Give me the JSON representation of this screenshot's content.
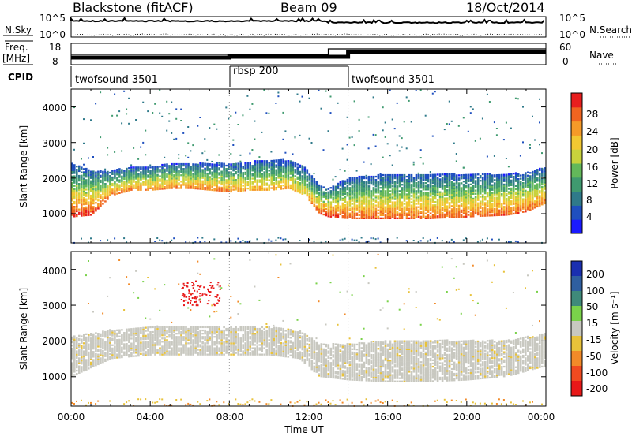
{
  "header": {
    "station": "Blackstone (fitACF)",
    "beam": "Beam 09",
    "date": "18/Oct/2014"
  },
  "noise_panel": {
    "left_label": "N.Sky",
    "right_label": "N.Search",
    "left_ticks": [
      "10^5",
      "10^0"
    ],
    "right_ticks": [
      "10^5",
      "10^0"
    ]
  },
  "freq_panel": {
    "left_label_line1": "Freq.",
    "left_label_line2": "[MHz]",
    "left_ticks": [
      "18",
      "8"
    ],
    "right_label": "Nave",
    "right_ticks": [
      "60",
      "0"
    ]
  },
  "cpid_panel": {
    "label": "CPID",
    "segments": [
      {
        "name": "twofsound 3501",
        "start_hour": 0,
        "end_hour": 8
      },
      {
        "name": "rbsp 200",
        "start_hour": 8,
        "end_hour": 14
      },
      {
        "name": "twofsound 3501",
        "start_hour": 14,
        "end_hour": 24
      }
    ]
  },
  "axes": {
    "x_ticks": [
      "00:00",
      "04:00",
      "08:00",
      "12:00",
      "16:00",
      "20:00",
      "00:00"
    ],
    "x_label": "Time UT",
    "y_ticks": [
      "1000",
      "2000",
      "3000",
      "4000"
    ],
    "y_label": "Slant Range [km]"
  },
  "power_colorbar": {
    "label": "Power [dB]",
    "ticks": [
      "4",
      "8",
      "12",
      "16",
      "20",
      "24",
      "28"
    ],
    "colors": [
      "#1a1aff",
      "#1f4fbf",
      "#2f7a8a",
      "#3f9a6f",
      "#63b85a",
      "#c8d23c",
      "#f2c832",
      "#f59a28",
      "#f06420",
      "#e81e1e"
    ]
  },
  "velocity_colorbar": {
    "label": "Velocity [m s⁻¹]",
    "ticks": [
      "200",
      "100",
      "50",
      "15",
      "-15",
      "-50",
      "-100",
      "-200"
    ],
    "colors": [
      "#1a2fb0",
      "#2f5fa0",
      "#3f8a7a",
      "#7ad24a",
      "#c8c8c0",
      "#e8c23a",
      "#f28a28",
      "#f04a20",
      "#e81818"
    ]
  },
  "chart_data": [
    {
      "type": "heatmap",
      "panel": "power",
      "x_range_hours": [
        0,
        24
      ],
      "y_range_km": [
        180,
        4500
      ],
      "value_unit": "dB",
      "value_range": [
        0,
        30
      ],
      "features": [
        {
          "description_ref": "main band",
          "hours": [
            0,
            1,
            2,
            3,
            4,
            5,
            6,
            7,
            8,
            9,
            10,
            11,
            11.8,
            12.5,
            13,
            14,
            16,
            18,
            20,
            22,
            23,
            24
          ],
          "range_low_km": [
            900,
            950,
            1500,
            1650,
            1650,
            1700,
            1700,
            1650,
            1600,
            1650,
            1650,
            1700,
            1500,
            1000,
            900,
            850,
            850,
            850,
            900,
            950,
            1050,
            1300
          ],
          "range_high_km": [
            2400,
            2200,
            2200,
            2300,
            2300,
            2400,
            2400,
            2400,
            2400,
            2450,
            2500,
            2500,
            2300,
            1800,
            1700,
            2000,
            2100,
            2100,
            2100,
            2100,
            2150,
            2300
          ],
          "peak_power_db": [
            28,
            28,
            24,
            24,
            24,
            24,
            24,
            24,
            24,
            22,
            22,
            22,
            20,
            26,
            28,
            26,
            26,
            26,
            26,
            26,
            26,
            24
          ]
        }
      ]
    },
    {
      "type": "heatmap",
      "panel": "velocity",
      "x_range_hours": [
        0,
        24
      ],
      "y_range_km": [
        180,
        4500
      ],
      "value_unit": "m s-1",
      "value_range": [
        -200,
        200
      ],
      "features": [
        {
          "description_ref": "ground scatter band",
          "hours": [
            0,
            2,
            4,
            6,
            8,
            10,
            11.5,
            12.5,
            14,
            16,
            18,
            20,
            22,
            24
          ],
          "range_low_km": [
            1000,
            1500,
            1600,
            1600,
            1600,
            1600,
            1500,
            1000,
            900,
            850,
            850,
            900,
            1000,
            1300
          ],
          "range_high_km": [
            2100,
            2300,
            2400,
            2400,
            2400,
            2400,
            2300,
            1900,
            1900,
            2000,
            2000,
            2000,
            2000,
            2200
          ],
          "velocity_ms": [
            0,
            0,
            0,
            0,
            0,
            0,
            0,
            0,
            0,
            0,
            0,
            0,
            0,
            0
          ]
        },
        {
          "description_ref": "red cluster",
          "hours": [
            5.5,
            7.5
          ],
          "range_km": [
            3000,
            3700
          ],
          "velocity_ms": -200
        }
      ]
    }
  ]
}
